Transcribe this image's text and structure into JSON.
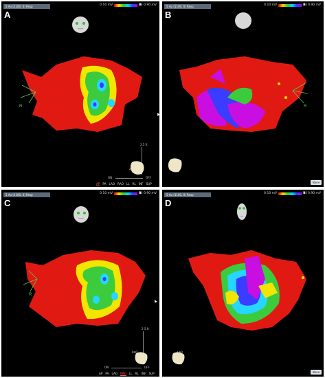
{
  "panels": [
    {
      "letter": "A",
      "map_label": "5 Au (1100, 0) Resp",
      "scale_min": "0.10 mV",
      "mode": "Bi",
      "scale_max": "0.90 mV",
      "axis_label": "R",
      "dock_scale": "2.5 ft",
      "mini_labels": [
        "AP",
        "PA"
      ],
      "slider_left": "ON",
      "slider_right": "OFF",
      "views": [
        "AP",
        "PA",
        "LAO",
        "RAO",
        "LL",
        "RL",
        "INF",
        "SUP"
      ],
      "active_view": "AP",
      "none_label": ""
    },
    {
      "letter": "B",
      "map_label": "5 Au (1100, 0) Resp",
      "scale_min": "0.10 mV",
      "mode": "Bi",
      "scale_max": "0.90 mV",
      "axis_label": "R",
      "dock_scale": "",
      "mini_labels": [],
      "slider_left": "",
      "slider_right": "",
      "views": [],
      "active_view": "",
      "none_label": "None"
    },
    {
      "letter": "C",
      "map_label": "5 Au (1100, 0) Resp",
      "scale_min": "0.10 mV",
      "mode": "Bi",
      "scale_max": "0.90 mV",
      "axis_label": "R",
      "dock_scale": "2.5 ft",
      "mini_labels": [
        "RAO",
        "LAO"
      ],
      "slider_left": "ON",
      "slider_right": "OFF",
      "views": [
        "AP",
        "PA",
        "LAO",
        "RAO",
        "LL",
        "RL",
        "INF",
        "SUP"
      ],
      "active_view": "RAO",
      "none_label": ""
    },
    {
      "letter": "D",
      "map_label": "5 Au (1100, 0) Resp",
      "scale_min": "0.10 mV",
      "mode": "Bi",
      "scale_max": "0.90 mV",
      "axis_label": "",
      "dock_scale": "",
      "mini_labels": [],
      "slider_left": "",
      "slider_right": "",
      "views": [],
      "active_view": "",
      "none_label": "None"
    }
  ],
  "colors": {
    "red": "#e01a12",
    "yellow": "#f2e600",
    "green": "#3ccb3c",
    "cyan": "#25d6ff",
    "blue": "#3a3cff",
    "magenta": "#c80ee0",
    "axis": "#55cc55"
  },
  "icons": {
    "head": "head-orientation-icon",
    "heart": "heart-thumbnail-icon",
    "ring": "rotation-ring-icon"
  }
}
